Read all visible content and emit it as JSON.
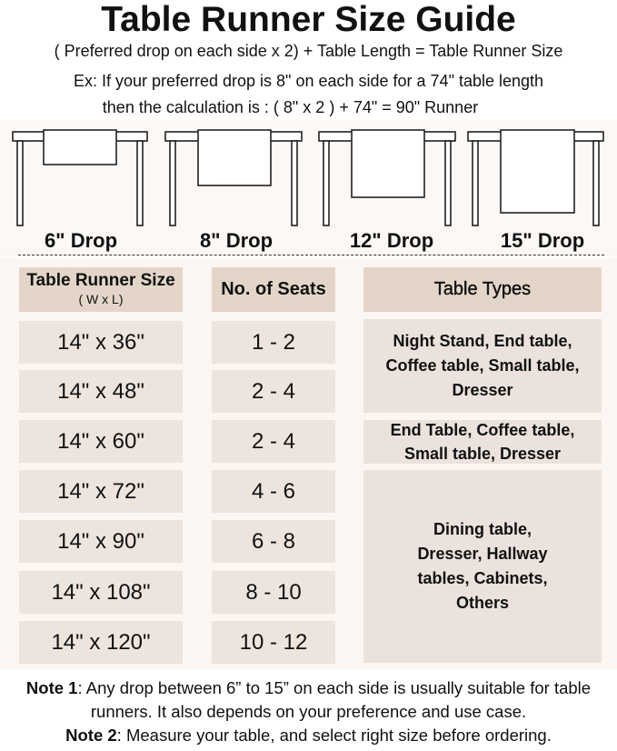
{
  "title": "Table Runner Size Guide",
  "formula": "( Preferred drop on each side x 2) + Table Length = Table Runner Size",
  "example_line1": "Ex: If your preferred drop is 8\" on each side for a 74\" table length",
  "example_line2": "then the calculation is : ( 8\" x 2 ) + 74\" = 90\" Runner",
  "drops": [
    {
      "label": "6\" Drop",
      "value": 6
    },
    {
      "label": "8\" Drop",
      "value": 8
    },
    {
      "label": "12\" Drop",
      "value": 12
    },
    {
      "label": "15\" Drop",
      "value": 15
    }
  ],
  "headers": {
    "size": "Table Runner Size",
    "size_sub": "( W x L)",
    "seats": "No. of Seats",
    "types": "Table Types"
  },
  "rows": [
    {
      "size": "14\" x 36\"",
      "seats": "1 - 2"
    },
    {
      "size": "14\" x 48\"",
      "seats": "2 - 4"
    },
    {
      "size": "14\" x 60\"",
      "seats": "2 - 4"
    },
    {
      "size": "14\" x 72\"",
      "seats": "4 - 6"
    },
    {
      "size": "14\" x 90\"",
      "seats": "6 - 8"
    },
    {
      "size": "14\" x 108\"",
      "seats": "8 - 10"
    },
    {
      "size": "14\" x 120\"",
      "seats": "10 - 12"
    }
  ],
  "types": [
    "Night Stand, End table, Coffee table, Small table, Dresser",
    "End Table, Coffee table, Small table, Dresser",
    "Dining table, Dresser, Hallway tables, Cabinets, Others"
  ],
  "notes": [
    {
      "label": "Note 1",
      "text": ": Any drop between 6” to 15” on each side is usually suitable for table runners. It also depends on your preference and use case."
    },
    {
      "label": "Note 2",
      "text": ": Measure your table, and select right size before ordering."
    }
  ],
  "colors": {
    "header": "#e3d6c8",
    "cell": "#ede4de",
    "panel": "#fbf6f1"
  }
}
